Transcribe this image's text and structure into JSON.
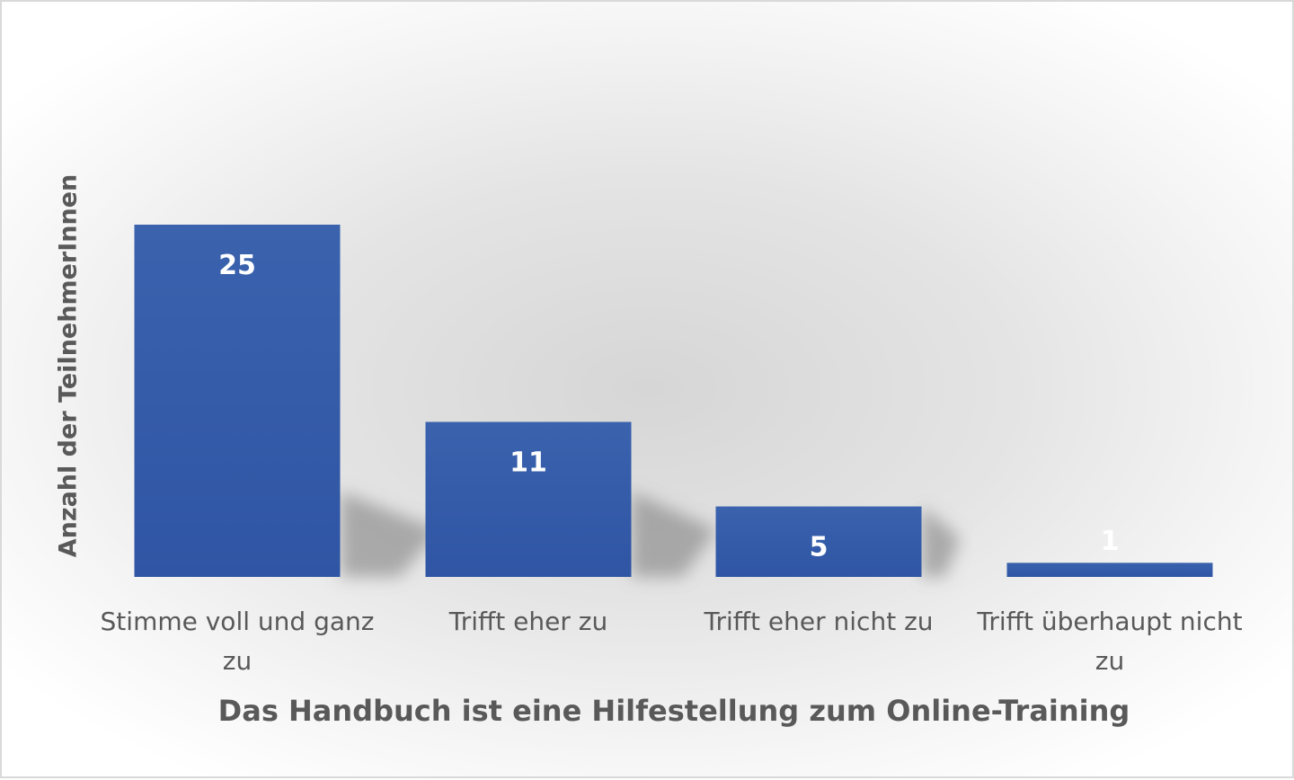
{
  "chart_data": {
    "type": "bar",
    "title": "",
    "xlabel": "Das Handbuch ist eine Hilfestellung zum Online-Training",
    "ylabel": "Anzahl der TeilnehmerInnen",
    "categories": [
      "Stimme voll und ganz zu",
      "Trifft eher zu",
      "Trifft eher nicht zu",
      "Trifft überhaupt nicht zu"
    ],
    "series": [
      {
        "values": [
          25,
          11,
          5,
          1
        ]
      }
    ],
    "data_labels": [
      "25",
      "11",
      "5",
      "1"
    ],
    "ylim": [
      0,
      25
    ],
    "grid": false,
    "legend": "none",
    "bar_color": "#2f55a4",
    "bar_color_light": "#3a62ad",
    "label_color": "#ffffff"
  }
}
